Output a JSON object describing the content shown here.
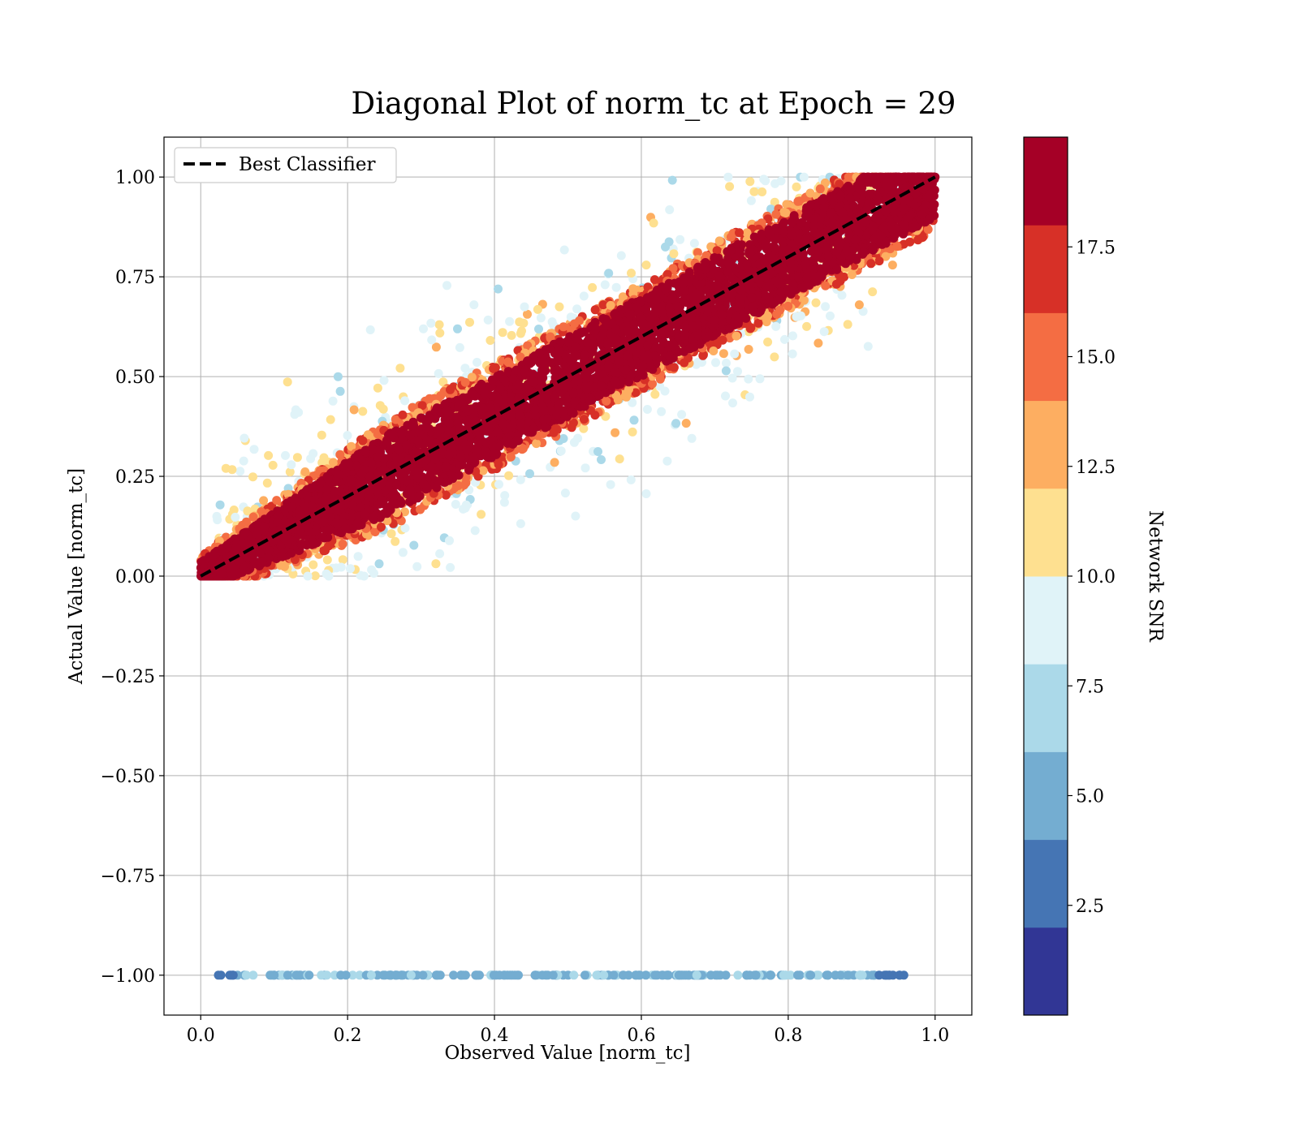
{
  "chart_data": {
    "type": "scatter",
    "title": "Diagonal Plot of norm_tc at Epoch = 29",
    "xlabel": "Observed Value [norm_tc]",
    "ylabel": "Actual Value [norm_tc]",
    "xlim": [
      -0.05,
      1.05
    ],
    "ylim": [
      -1.1,
      1.1
    ],
    "x_ticks": [
      0.0,
      0.2,
      0.4,
      0.6,
      0.8,
      1.0
    ],
    "x_tick_labels": [
      "0.0",
      "0.2",
      "0.4",
      "0.6",
      "0.8",
      "1.0"
    ],
    "y_ticks": [
      1.0,
      0.75,
      0.5,
      0.25,
      0.0,
      -0.25,
      -0.5,
      -0.75,
      -1.0
    ],
    "y_tick_labels": [
      "1.00",
      "0.75",
      "0.50",
      "0.25",
      "0.00",
      "−0.25",
      "−0.50",
      "−0.75",
      "−1.00"
    ],
    "grid": true,
    "legend": {
      "placement": "upper-left",
      "entries": [
        {
          "label": "Best Classifier",
          "style": "dashed",
          "color": "#000000"
        }
      ]
    },
    "reference_line": {
      "label": "Best Classifier",
      "x": [
        0.0,
        1.0
      ],
      "y": [
        0.0,
        1.0
      ]
    },
    "series": [
      {
        "description": "diagonal band, high SNR",
        "snr_range": [
          17.5,
          20
        ],
        "x_range": [
          0.0,
          1.0
        ],
        "y_relation": "y ≈ x ± 0.1"
      },
      {
        "description": "band edges, medium SNR",
        "snr_range": [
          12.5,
          17.5
        ],
        "x_range": [
          0.0,
          1.0
        ],
        "y_relation": "y ≈ x ± 0.14"
      },
      {
        "description": "scattered outliers, low SNR",
        "snr_range": [
          7.5,
          12.5
        ],
        "x_range": [
          0.02,
          0.95
        ],
        "y_range": [
          0.0,
          1.0
        ]
      },
      {
        "description": "rejected samples row",
        "snr_range": [
          2.5,
          7.5
        ],
        "x_range": [
          0.02,
          0.96
        ],
        "y": -1.0
      }
    ],
    "colorbar": {
      "label": "Network SNR",
      "min": 0,
      "max": 20,
      "ticks": [
        2.5,
        5.0,
        7.5,
        10.0,
        12.5,
        15.0,
        17.5
      ],
      "tick_labels": [
        "2.5",
        "5.0",
        "7.5",
        "10.0",
        "12.5",
        "15.0",
        "17.5"
      ],
      "colors": [
        "#313695",
        "#4575b4",
        "#74add1",
        "#abd9e9",
        "#e0f3f8",
        "#fee090",
        "#fdae61",
        "#f46d43",
        "#d73027",
        "#a50026"
      ]
    }
  }
}
